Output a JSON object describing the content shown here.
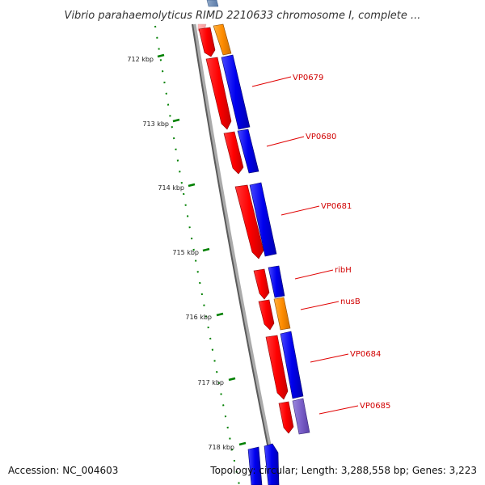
{
  "title": "Vibrio parahaemolyticus RIMD 2210633 chromosome I, complete ...",
  "accession": "Accession: NC_004603",
  "summary": "Topology: circular; Length: 3,288,558 bp; Genes: 3,223",
  "scale_ticks": [
    "712 kbp",
    "713 kbp",
    "714 kbp",
    "715 kbp",
    "716 kbp",
    "717 kbp",
    "718 kbp"
  ],
  "colors": {
    "backbone": "#888888",
    "forward": "#ff0000",
    "reverse_blue": "#0000ee",
    "reverse_orange": "#ff8c00",
    "reverse_purple": "#7a5fc8",
    "tick": "#008000",
    "label": "#d10000"
  },
  "genes": [
    {
      "name": "VP0679"
    },
    {
      "name": "VP0680"
    },
    {
      "name": "VP0681"
    },
    {
      "name": "ribH"
    },
    {
      "name": "nusB"
    },
    {
      "name": "VP0684"
    },
    {
      "name": "VP0685"
    }
  ]
}
